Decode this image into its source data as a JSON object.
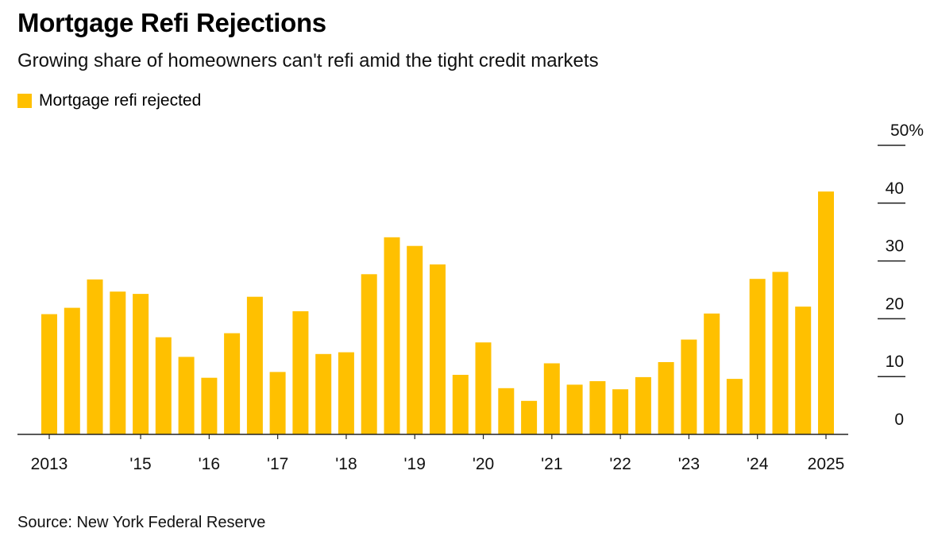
{
  "chart_data": {
    "type": "bar",
    "title": "Mortgage Refi Rejections",
    "subtitle": "Growing share of homeowners can't refi amid the tight credit markets",
    "legend": [
      "Mortgage refi rejected"
    ],
    "series": [
      {
        "name": "Mortgage refi rejected",
        "values": [
          20.8,
          21.9,
          26.8,
          24.7,
          24.3,
          16.8,
          13.4,
          9.8,
          17.5,
          23.8,
          10.8,
          21.3,
          13.9,
          14.2,
          27.7,
          34.1,
          32.6,
          29.4,
          10.3,
          15.9,
          8.0,
          5.8,
          12.3,
          8.6,
          9.2,
          7.8,
          9.9,
          12.5,
          16.4,
          20.9,
          9.6,
          26.9,
          28.1,
          22.1,
          42.0
        ],
        "color": "#ffc000"
      }
    ],
    "x_tick_labels": [
      "2013",
      "'15",
      "'16",
      "'17",
      "'18",
      "'19",
      "'20",
      "'21",
      "'22",
      "'23",
      "'24",
      "2025"
    ],
    "x_tick_indices": [
      0,
      4,
      7,
      10,
      13,
      16,
      19,
      22,
      25,
      28,
      31,
      34
    ],
    "y_ticks": [
      0,
      10,
      20,
      30,
      40,
      50
    ],
    "y_tick_labels": [
      "0",
      "10",
      "20",
      "30",
      "40",
      "50%"
    ],
    "ylim": [
      0,
      50
    ],
    "y_axis_position": "right",
    "grid": false,
    "legend_position": "top-left",
    "source": "Source: New York Federal Reserve"
  }
}
